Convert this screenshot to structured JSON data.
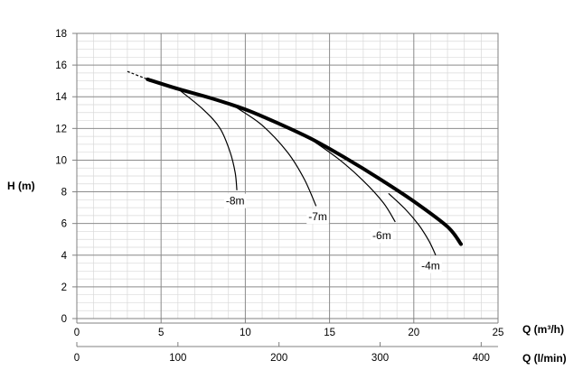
{
  "chart_data": {
    "type": "line",
    "ylabel": "H (m)",
    "xlabel_top": "Q (m³/h)",
    "xlabel_bottom": "Q (l/min)",
    "ylim": [
      0,
      18
    ],
    "xlim_m3h": [
      0,
      25
    ],
    "xlim_lmin": [
      0,
      416.67
    ],
    "y_ticks": [
      "0",
      "2",
      "4",
      "6",
      "8",
      "10",
      "12",
      "14",
      "16",
      "18"
    ],
    "x_ticks_m3h": [
      "0",
      "5",
      "10",
      "15",
      "20",
      "25"
    ],
    "x_ticks_lmin": [
      "0",
      "100",
      "200",
      "300",
      "400"
    ],
    "grid": true,
    "main_curve": {
      "x": [
        4.2,
        6,
        8,
        10,
        12,
        14,
        16,
        18,
        20,
        22,
        22.8
      ],
      "y": [
        15.1,
        14.5,
        13.9,
        13.2,
        12.3,
        11.3,
        10.1,
        8.8,
        7.4,
        5.8,
        4.7
      ],
      "extrapolated": {
        "x": [
          3.0,
          4.2
        ],
        "y": [
          15.6,
          15.1
        ]
      }
    },
    "suction_curves": [
      {
        "label": "-8m",
        "x": [
          6.0,
          7.5,
          8.5,
          9.1,
          9.4,
          9.5
        ],
        "y": [
          14.5,
          13.2,
          12.0,
          10.5,
          9.2,
          8.1
        ],
        "label_x": 9.4,
        "label_y": 7.2
      },
      {
        "label": "-7m",
        "x": [
          9.5,
          11.0,
          12.5,
          13.5,
          14.2
        ],
        "y": [
          13.3,
          12.2,
          10.5,
          8.8,
          7.1
        ],
        "label_x": 14.3,
        "label_y": 6.2
      },
      {
        "label": "-6m",
        "x": [
          13.5,
          15.5,
          17.0,
          18.2,
          18.9
        ],
        "y": [
          11.6,
          10.1,
          8.7,
          7.3,
          6.1
        ],
        "label_x": 18.1,
        "label_y": 5.0
      },
      {
        "label": "-4m",
        "x": [
          18.5,
          19.5,
          20.3,
          20.9,
          21.3
        ],
        "y": [
          7.9,
          6.9,
          5.9,
          4.9,
          4.0
        ],
        "label_x": 21.0,
        "label_y": 3.1
      }
    ]
  }
}
